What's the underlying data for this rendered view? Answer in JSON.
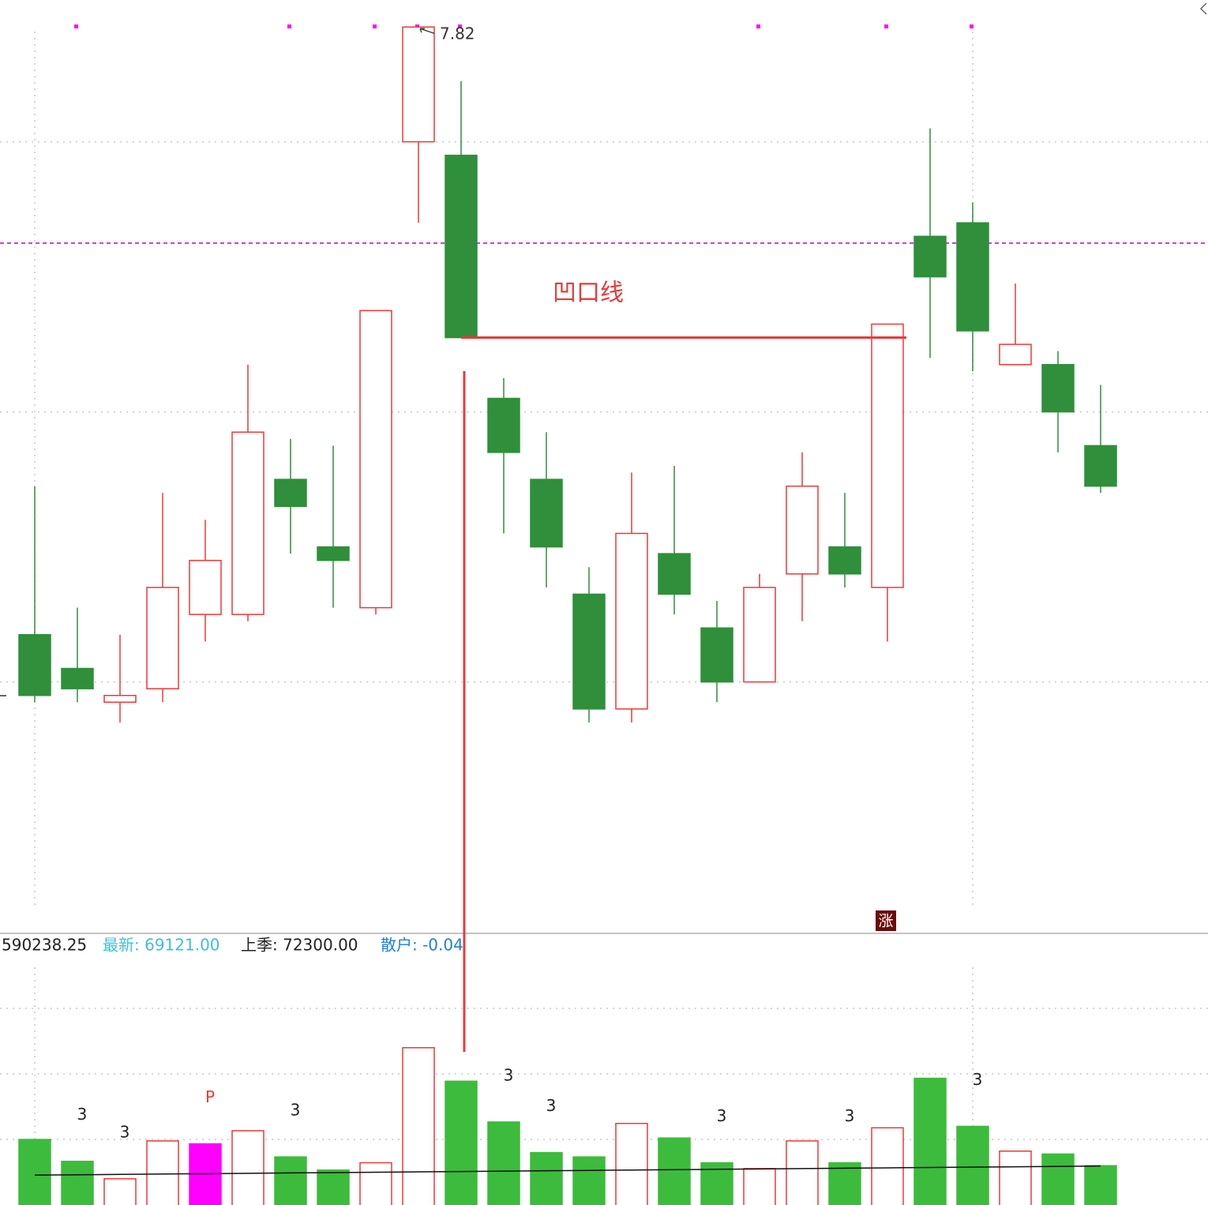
{
  "chart_data": [
    {
      "type": "candlestick",
      "open": [
        6.92,
        6.87,
        6.82,
        6.84,
        6.95,
        6.95,
        7.15,
        7.05,
        6.96,
        7.65,
        7.63,
        7.27,
        7.15,
        6.98,
        6.81,
        7.04,
        6.93,
        6.85,
        7.01,
        7.05,
        6.99,
        7.51,
        7.53,
        7.32,
        7.32,
        7.2
      ],
      "high": [
        7.14,
        6.96,
        6.92,
        7.13,
        7.09,
        7.32,
        7.21,
        7.2,
        7.4,
        7.82,
        7.74,
        7.3,
        7.22,
        7.02,
        7.16,
        7.17,
        6.97,
        7.01,
        7.19,
        7.13,
        7.38,
        7.67,
        7.56,
        7.44,
        7.34,
        7.29
      ],
      "low": [
        6.82,
        6.82,
        6.79,
        6.82,
        6.91,
        6.94,
        7.04,
        6.96,
        6.95,
        7.53,
        7.36,
        7.07,
        6.99,
        6.79,
        6.79,
        6.95,
        6.82,
        6.85,
        6.94,
        6.99,
        6.91,
        7.33,
        7.31,
        7.32,
        7.19,
        7.13
      ],
      "close": [
        6.83,
        6.84,
        6.83,
        6.99,
        7.03,
        7.22,
        7.11,
        7.03,
        7.4,
        7.82,
        7.36,
        7.19,
        7.05,
        6.81,
        7.07,
        6.98,
        6.85,
        6.99,
        7.14,
        7.01,
        7.38,
        7.45,
        7.37,
        7.35,
        7.25,
        7.14
      ],
      "up_color": "#e83a3a",
      "down_color": "#2f8f3a",
      "ylim": [
        6.48,
        7.86
      ],
      "ygrid": [
        6.85,
        7.25,
        7.65
      ],
      "reference_line": {
        "value": 7.5,
        "color": "#c000c0"
      },
      "notch_line": {
        "value": 7.36,
        "label": "凹口线",
        "color": "#e83a3a"
      },
      "badge": "涨"
    },
    {
      "type": "bar",
      "header": [
        {
          "text": "590238.25",
          "color": "#222222"
        },
        {
          "text": "最新: 69121.00",
          "color": "#3cc0d8"
        },
        {
          "text": "上季: 72300.00",
          "color": "#222222"
        },
        {
          "text": "散户: -0.04",
          "color": "#1e7fd8"
        }
      ],
      "values": [
        90000,
        75000,
        63000,
        89000,
        87000,
        96000,
        78000,
        69000,
        74000,
        153000,
        130000,
        102000,
        81000,
        78000,
        101000,
        91000,
        74000,
        70000,
        89000,
        74000,
        98000,
        132000,
        99000,
        82000,
        80000,
        72000
      ],
      "colors": [
        "#3dbb3d",
        "#3dbb3d",
        "#e83a3a",
        "#e83a3a",
        "#ff00ff",
        "#e83a3a",
        "#3dbb3d",
        "#3dbb3d",
        "#e83a3a",
        "#e83a3a",
        "#3dbb3d",
        "#3dbb3d",
        "#3dbb3d",
        "#3dbb3d",
        "#e83a3a",
        "#3dbb3d",
        "#3dbb3d",
        "#e83a3a",
        "#e83a3a",
        "#3dbb3d",
        "#e83a3a",
        "#3dbb3d",
        "#3dbb3d",
        "#e83a3a",
        "#3dbb3d",
        "#3dbb3d"
      ],
      "hollow_color": "#e83a3a",
      "bar_labels": [
        null,
        {
          "text": "3",
          "color": "#222222"
        },
        {
          "text": "3",
          "color": "#222222"
        },
        null,
        {
          "text": "P",
          "color": "#e83a3a"
        },
        null,
        {
          "text": "3",
          "color": "#222222"
        },
        null,
        null,
        null,
        null,
        {
          "text": "3",
          "color": "#222222"
        },
        {
          "text": "3",
          "color": "#222222"
        },
        null,
        null,
        null,
        {
          "text": "3",
          "color": "#222222"
        },
        null,
        null,
        {
          "text": "3",
          "color": "#222222"
        },
        null,
        null,
        {
          "text": "3",
          "color": "#222222"
        },
        null,
        null,
        null
      ],
      "ma": [
        65500,
        65750,
        66000,
        66250,
        66500,
        66750,
        67000,
        67250,
        67500,
        67750,
        68000,
        68250,
        68500,
        68750,
        69000,
        69250,
        69500,
        69750,
        70000,
        70250,
        70500,
        70750,
        71000,
        71250,
        71500,
        71750
      ],
      "ma_color": "#111111",
      "ylim": [
        0,
        231500
      ],
      "ygrid": [
        90000,
        135000,
        180000
      ]
    }
  ]
}
